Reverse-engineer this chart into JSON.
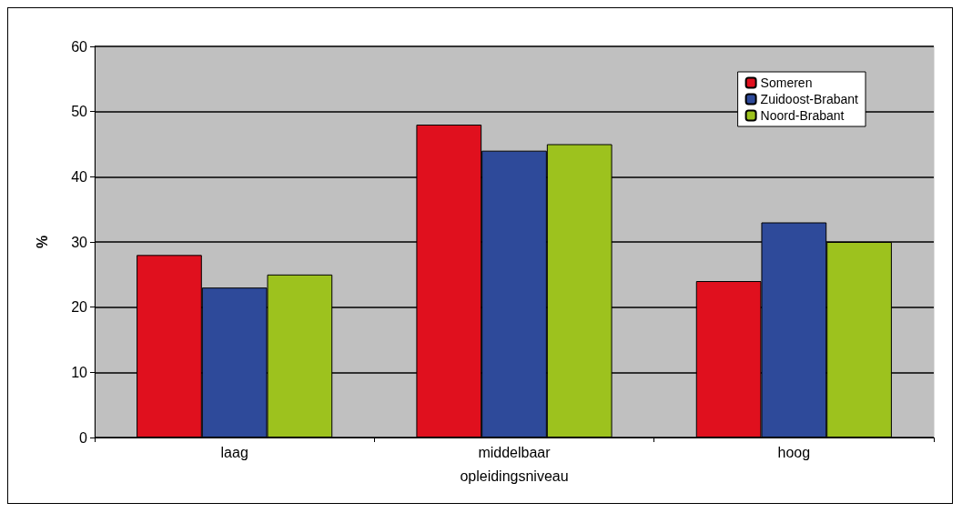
{
  "chart_data": {
    "type": "bar",
    "xlabel": "opleidingsniveau",
    "ylabel": "%",
    "categories": [
      "laag",
      "middelbaar",
      "hoog"
    ],
    "series": [
      {
        "name": "Someren",
        "color": "#e0101e",
        "values": [
          28,
          48,
          24
        ]
      },
      {
        "name": "Zuidoost-Brabant",
        "color": "#2e4a9a",
        "values": [
          23,
          44,
          33
        ]
      },
      {
        "name": "Noord-Brabant",
        "color": "#9dc21e",
        "values": [
          25,
          45,
          30
        ]
      }
    ],
    "ylim": [
      0,
      60
    ],
    "yticks": [
      0,
      10,
      20,
      30,
      40,
      50,
      60
    ],
    "grid": "y",
    "legend": "top right"
  }
}
